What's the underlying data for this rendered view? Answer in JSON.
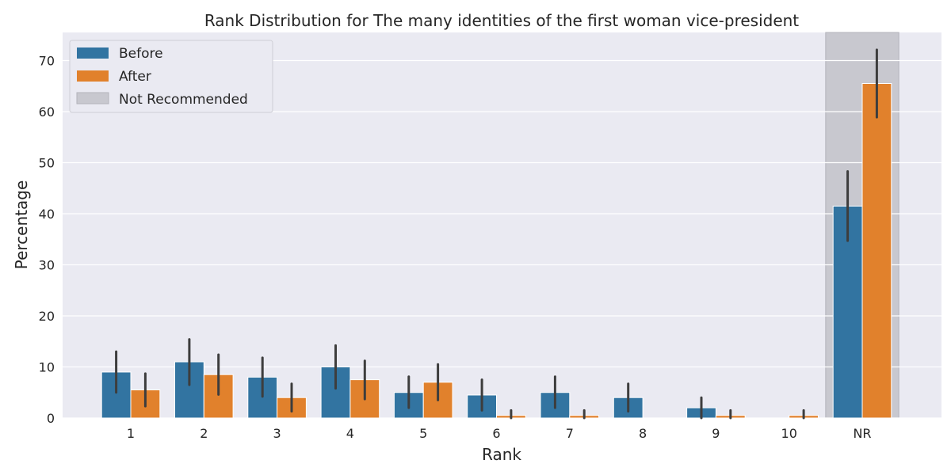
{
  "chart_data": {
    "type": "bar",
    "title": "Rank Distribution for The many identities of the first woman vice-president",
    "xlabel": "Rank",
    "ylabel": "Percentage",
    "categories": [
      "1",
      "2",
      "3",
      "4",
      "5",
      "6",
      "7",
      "8",
      "9",
      "10",
      "NR"
    ],
    "ylim": [
      0,
      75.5
    ],
    "yticks": [
      0,
      10,
      20,
      30,
      40,
      50,
      60,
      70
    ],
    "grid": true,
    "legend_position": "top-left",
    "highlight": {
      "category": "NR",
      "label": "Not Recommended",
      "color": "#c8c8cf"
    },
    "series": [
      {
        "name": "Before",
        "color": "#3274a1",
        "values": [
          9.0,
          11.0,
          8.0,
          10.0,
          5.0,
          4.5,
          5.0,
          4.0,
          2.0,
          0.0,
          41.5
        ],
        "ci_low": [
          5.0,
          6.5,
          4.2,
          5.8,
          2.0,
          1.5,
          2.0,
          1.3,
          0.0,
          0.0,
          34.7
        ],
        "ci_high": [
          13.0,
          15.4,
          11.8,
          14.2,
          8.1,
          7.5,
          8.1,
          6.7,
          4.0,
          0.0,
          48.3
        ]
      },
      {
        "name": "After",
        "color": "#e1812c",
        "values": [
          5.5,
          8.5,
          4.0,
          7.5,
          7.0,
          0.5,
          0.5,
          0.0,
          0.5,
          0.5,
          65.5
        ],
        "ci_low": [
          2.3,
          4.6,
          1.3,
          3.7,
          3.5,
          0.0,
          0.0,
          0.0,
          0.0,
          0.0,
          58.9
        ],
        "ci_high": [
          8.7,
          12.4,
          6.7,
          11.2,
          10.5,
          1.5,
          1.5,
          0.0,
          1.5,
          1.5,
          72.1
        ]
      }
    ]
  }
}
